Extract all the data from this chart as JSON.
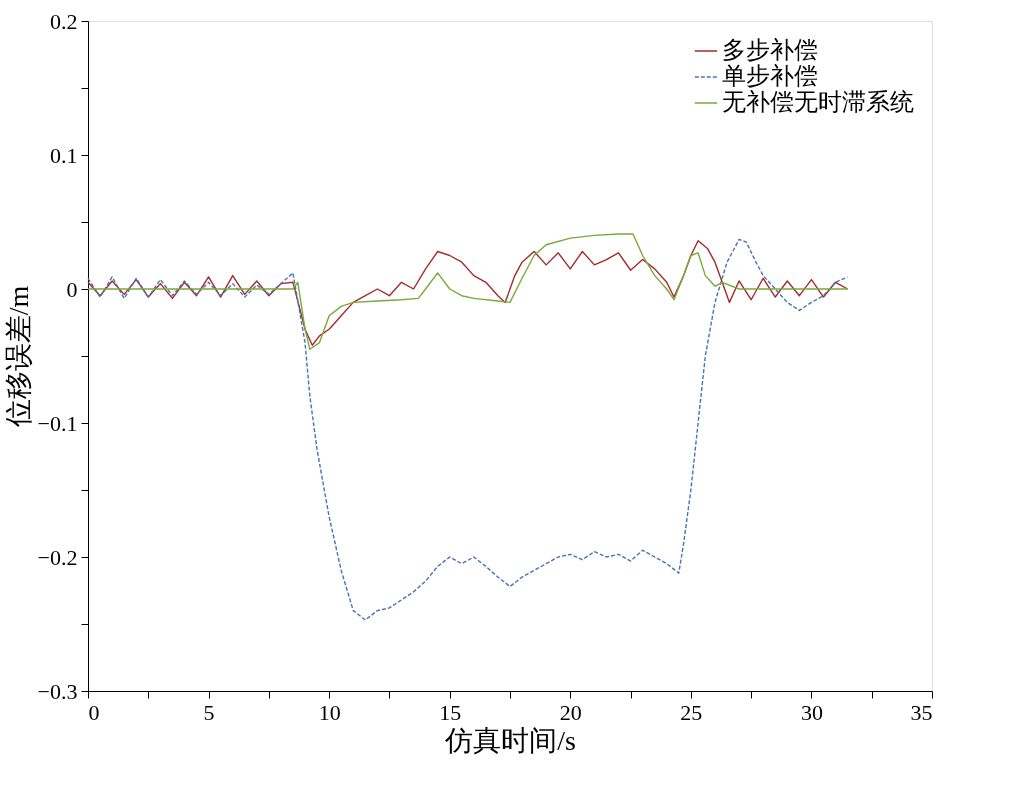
{
  "chart_data": {
    "type": "line",
    "xlabel": "仿真时间/s",
    "ylabel": "位移误差/m",
    "xlim": [
      0,
      35
    ],
    "ylim": [
      -0.3,
      0.2
    ],
    "xticks": [
      0,
      {
        "value": 2.5,
        "label": null
      },
      5,
      {
        "value": 7.5,
        "label": null
      },
      10,
      {
        "value": 12.5,
        "label": null
      },
      15,
      {
        "value": 17.5,
        "label": null
      },
      20,
      {
        "value": 22.5,
        "label": null
      },
      25,
      {
        "value": 27.5,
        "label": null
      },
      30,
      {
        "value": 32.5,
        "label": null
      },
      35
    ],
    "yticks": [
      {
        "value": -0.3,
        "label": "−0.3"
      },
      {
        "value": -0.25,
        "label": null
      },
      {
        "value": -0.2,
        "label": "−0.2"
      },
      {
        "value": -0.15,
        "label": null
      },
      {
        "value": -0.1,
        "label": "−0.1"
      },
      {
        "value": -0.05,
        "label": null
      },
      0,
      {
        "value": 0.05,
        "label": null
      },
      0.1,
      {
        "value": 0.15,
        "label": null
      },
      0.2
    ],
    "grid": false,
    "legend": "top right",
    "marker": "none",
    "series": [
      {
        "name": "多步补偿",
        "color": "#a52a2a",
        "line_style": "solid",
        "x": [
          0,
          0.5,
          1,
          1.5,
          2,
          2.5,
          3,
          3.5,
          4,
          4.5,
          5,
          5.5,
          6,
          6.5,
          7,
          7.5,
          8,
          8.5,
          9,
          9.3,
          9.6,
          10,
          10.5,
          11,
          11.5,
          12,
          12.5,
          13,
          13.5,
          14,
          14.5,
          15,
          15.5,
          16,
          16.5,
          17,
          17.3,
          17.7,
          18,
          18.5,
          19,
          19.5,
          20,
          20.5,
          21,
          21.5,
          22,
          22.5,
          23,
          23.5,
          24,
          24.3,
          24.7,
          25,
          25.3,
          25.7,
          26,
          26.3,
          26.6,
          27,
          27.5,
          28,
          28.5,
          29,
          29.5,
          30,
          30.5,
          31,
          31.5
        ],
        "values": [
          0.005,
          -0.005,
          0.006,
          -0.004,
          0.007,
          -0.006,
          0.004,
          -0.007,
          0.005,
          -0.005,
          0.009,
          -0.006,
          0.01,
          -0.004,
          0.006,
          -0.005,
          0.004,
          0.005,
          -0.03,
          -0.042,
          -0.035,
          -0.03,
          -0.02,
          -0.01,
          -0.005,
          0.0,
          -0.005,
          0.005,
          0.0,
          0.015,
          0.028,
          0.025,
          0.02,
          0.01,
          0.005,
          -0.005,
          -0.01,
          0.01,
          0.02,
          0.028,
          0.018,
          0.027,
          0.015,
          0.028,
          0.018,
          0.022,
          0.027,
          0.014,
          0.022,
          0.015,
          0.005,
          -0.006,
          0.01,
          0.025,
          0.036,
          0.03,
          0.02,
          0.005,
          -0.01,
          0.006,
          -0.008,
          0.008,
          -0.006,
          0.006,
          -0.005,
          0.007,
          -0.006,
          0.005,
          0.0
        ]
      },
      {
        "name": "单步补偿",
        "color": "#4a72b0",
        "line_style": "dashed",
        "x": [
          0,
          0.5,
          1,
          1.5,
          2,
          2.5,
          3,
          3.5,
          4,
          4.5,
          5,
          5.5,
          6,
          6.5,
          7,
          7.5,
          8,
          8.5,
          9,
          9.2,
          9.5,
          10,
          10.5,
          11,
          11.5,
          12,
          12.5,
          13,
          13.5,
          14,
          14.5,
          15,
          15.5,
          16,
          16.5,
          17,
          17.5,
          18,
          18.5,
          19,
          19.5,
          20,
          20.5,
          21,
          21.5,
          22,
          22.5,
          23,
          23.5,
          24,
          24.5,
          24.7,
          25,
          25.3,
          25.6,
          26,
          26.5,
          27,
          27.3,
          27.7,
          28,
          28.5,
          29,
          29.5,
          30,
          30.5,
          31,
          31.5
        ],
        "values": [
          0.008,
          -0.006,
          0.009,
          -0.007,
          0.008,
          -0.006,
          0.007,
          -0.005,
          0.006,
          -0.004,
          0.005,
          -0.005,
          0.004,
          -0.006,
          0.003,
          -0.004,
          0.004,
          0.012,
          -0.04,
          -0.08,
          -0.12,
          -0.17,
          -0.21,
          -0.24,
          -0.247,
          -0.24,
          -0.238,
          -0.232,
          -0.226,
          -0.218,
          -0.207,
          -0.2,
          -0.205,
          -0.2,
          -0.207,
          -0.215,
          -0.222,
          -0.215,
          -0.21,
          -0.205,
          -0.2,
          -0.198,
          -0.202,
          -0.196,
          -0.2,
          -0.198,
          -0.203,
          -0.195,
          -0.2,
          -0.205,
          -0.212,
          -0.19,
          -0.15,
          -0.1,
          -0.05,
          -0.01,
          0.02,
          0.037,
          0.035,
          0.02,
          0.01,
          0.0,
          -0.01,
          -0.016,
          -0.01,
          -0.005,
          0.005,
          0.009
        ]
      },
      {
        "name": "无补偿无时滞系统",
        "color": "#7aa83a",
        "line_style": "solid",
        "x": [
          0,
          8.5,
          8.7,
          9.0,
          9.2,
          9.6,
          10,
          10.5,
          11,
          12,
          13,
          13.7,
          14,
          14.5,
          15,
          15.5,
          16,
          17,
          17.5,
          18,
          18.5,
          19,
          20,
          21,
          22,
          22.6,
          23,
          23.5,
          24,
          24.3,
          24.7,
          25,
          25.3,
          25.6,
          26,
          26.3,
          27,
          31.5
        ],
        "values": [
          0,
          0,
          0.005,
          -0.03,
          -0.045,
          -0.04,
          -0.02,
          -0.013,
          -0.01,
          -0.009,
          -0.008,
          -0.007,
          0.0,
          0.012,
          0.0,
          -0.005,
          -0.007,
          -0.009,
          -0.01,
          0.008,
          0.025,
          0.033,
          0.038,
          0.04,
          0.041,
          0.041,
          0.025,
          0.01,
          0.0,
          -0.008,
          0.01,
          0.025,
          0.027,
          0.01,
          0.002,
          0.005,
          0,
          0
        ]
      }
    ]
  }
}
